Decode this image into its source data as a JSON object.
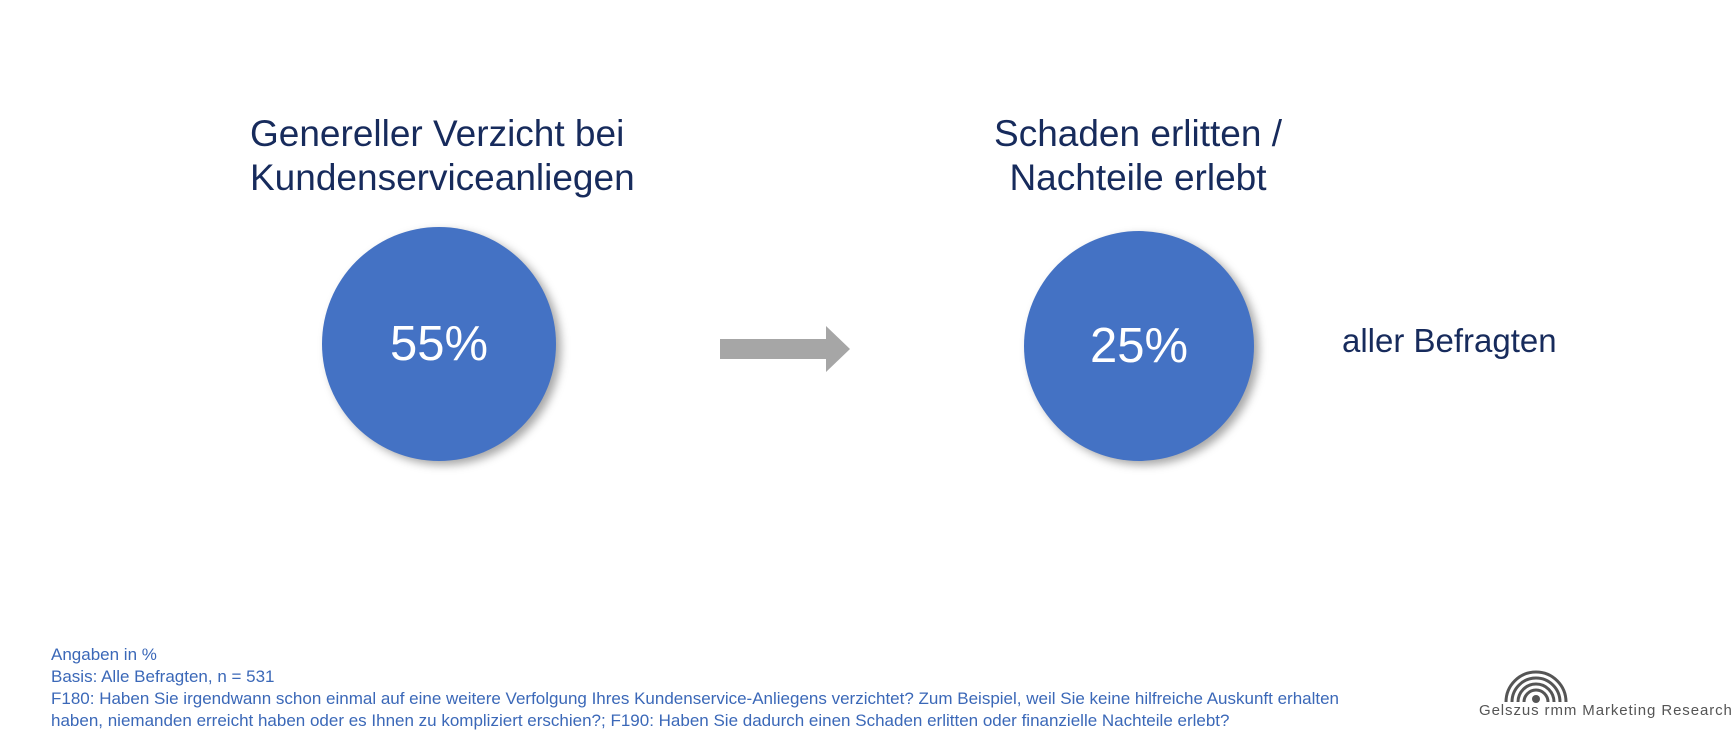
{
  "chart_data": {
    "type": "table",
    "items": [
      {
        "title_lines": [
          "Genereller Verzicht bei",
          "Kundenserviceanliegen"
        ],
        "value": 55,
        "value_label": "55%"
      },
      {
        "title_lines": [
          "Schaden erlitten /",
          "Nachteile erlebt"
        ],
        "value": 25,
        "value_label": "25%"
      }
    ],
    "side_label": "aller Befragten"
  },
  "colors": {
    "circle": "#4472c4",
    "title": "#172b5c",
    "arrow": "#a6a6a6",
    "footnote": "#3b68b8"
  },
  "icons": {
    "arrow": "right-arrow-icon",
    "logo": "signal-waves-logo-icon"
  },
  "footnote": {
    "lines": [
      "Angaben in %",
      "Basis: Alle Befragten, n = 531",
      "F180: Haben Sie irgendwann schon einmal auf eine weitere Verfolgung Ihres Kundenservice-Anliegens verzichtet? Zum Beispiel, weil Sie keine hilfreiche Auskunft erhalten",
      "haben, niemanden erreicht haben oder es Ihnen zu kompliziert erschien?; F190: Haben Sie dadurch einen Schaden erlitten oder finanzielle Nachteile erlebt?"
    ]
  },
  "logo": {
    "text": "Gelszus rmm Marketing Research"
  }
}
